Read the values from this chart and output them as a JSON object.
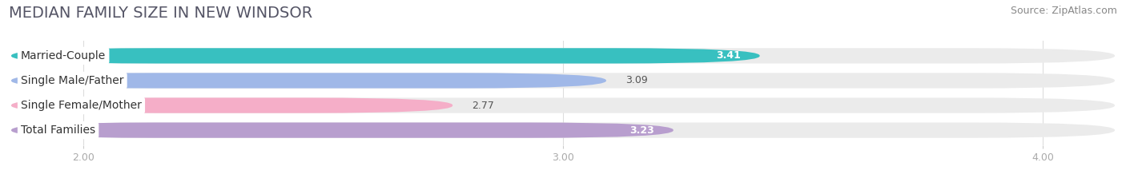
{
  "title": "MEDIAN FAMILY SIZE IN NEW WINDSOR",
  "source": "Source: ZipAtlas.com",
  "categories": [
    "Married-Couple",
    "Single Male/Father",
    "Single Female/Mother",
    "Total Families"
  ],
  "values": [
    3.41,
    3.09,
    2.77,
    3.23
  ],
  "bar_colors": [
    "#38c0c0",
    "#a0b8e8",
    "#f5aec8",
    "#b89ece"
  ],
  "value_white": [
    true,
    false,
    false,
    true
  ],
  "xmin": 1.85,
  "xmax": 4.15,
  "xticks": [
    2.0,
    3.0,
    4.0
  ],
  "xtick_labels": [
    "2.00",
    "3.00",
    "4.00"
  ],
  "background_color": "#ffffff",
  "bar_bg_color": "#ebebeb",
  "title_fontsize": 14,
  "source_fontsize": 9,
  "label_fontsize": 10,
  "value_fontsize": 9
}
